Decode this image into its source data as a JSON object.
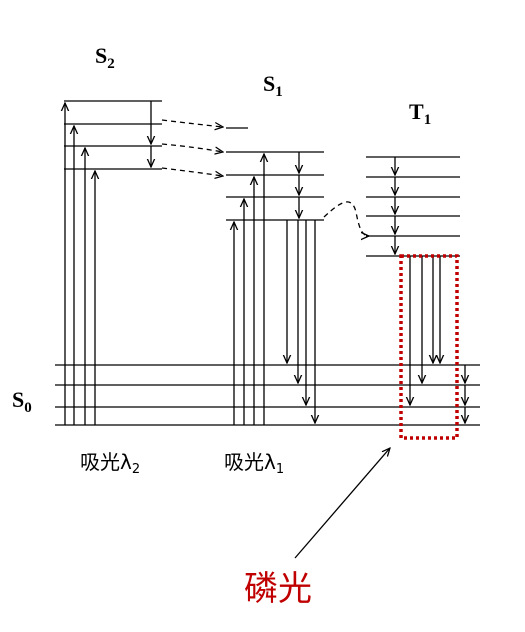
{
  "states": {
    "s2": {
      "main": "S",
      "sub": "2"
    },
    "s1": {
      "main": "S",
      "sub": "1"
    },
    "t1": {
      "main": "T",
      "sub": "1"
    },
    "s0": {
      "main": "S",
      "sub": "0"
    }
  },
  "absorption": {
    "lambda2": {
      "text": "吸光λ",
      "sub": "2"
    },
    "lambda1": {
      "text": "吸光λ",
      "sub": "1"
    }
  },
  "phosphorescence_label": "磷光",
  "colors": {
    "lines": "#000000",
    "highlight": "#c00000"
  }
}
